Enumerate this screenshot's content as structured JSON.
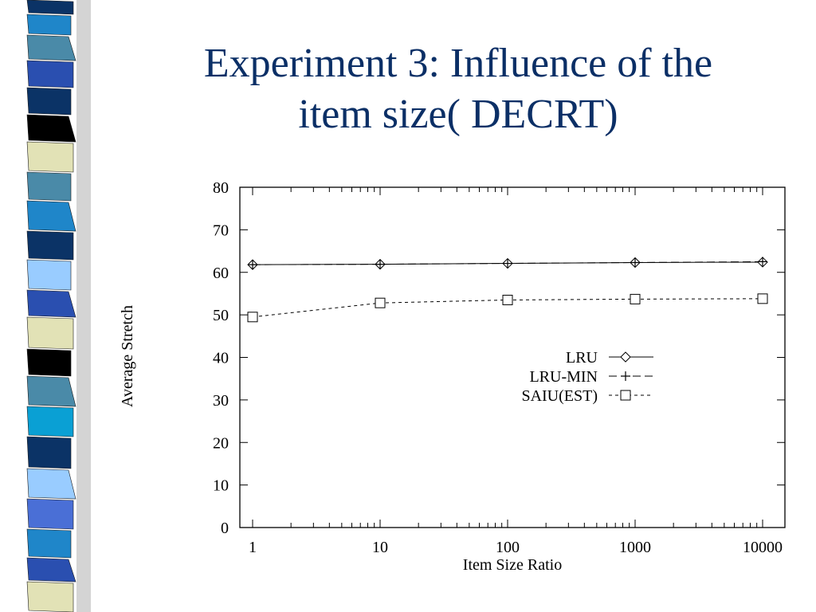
{
  "slide": {
    "title_line1": "Experiment 3: Influence of the",
    "title_line2": "item size( DECRT)",
    "title_color": "#0b2f66",
    "stripe_colors": [
      "#0b3366",
      "#1f86c9",
      "#4a8aa8",
      "#2a4fb0",
      "#000000",
      "#e2e2b6",
      "#99ccff",
      "#0aa0d4",
      "#4a6fd6"
    ]
  },
  "chart_data": {
    "type": "line",
    "title": "",
    "xlabel": "Item Size Ratio",
    "ylabel": "Average Stretch",
    "x_scale": "log",
    "x": [
      1,
      10,
      100,
      1000,
      10000
    ],
    "x_tick_labels": [
      "1",
      "10",
      "100",
      "1000",
      "10000"
    ],
    "ylim": [
      0,
      80
    ],
    "y_ticks": [
      0,
      10,
      20,
      30,
      40,
      50,
      60,
      70,
      80
    ],
    "grid": false,
    "legend_position": "center-right",
    "series": [
      {
        "name": "LRU",
        "marker": "diamond",
        "dash": "solid",
        "values": [
          61.8,
          61.9,
          62.1,
          62.3,
          62.4
        ]
      },
      {
        "name": "LRU-MIN",
        "marker": "plus",
        "dash": "long-dash",
        "values": [
          61.8,
          61.9,
          62.1,
          62.3,
          62.5
        ]
      },
      {
        "name": "SAIU(EST)",
        "marker": "square",
        "dash": "short-dash",
        "values": [
          49.5,
          52.8,
          53.5,
          53.7,
          53.8
        ]
      }
    ]
  }
}
